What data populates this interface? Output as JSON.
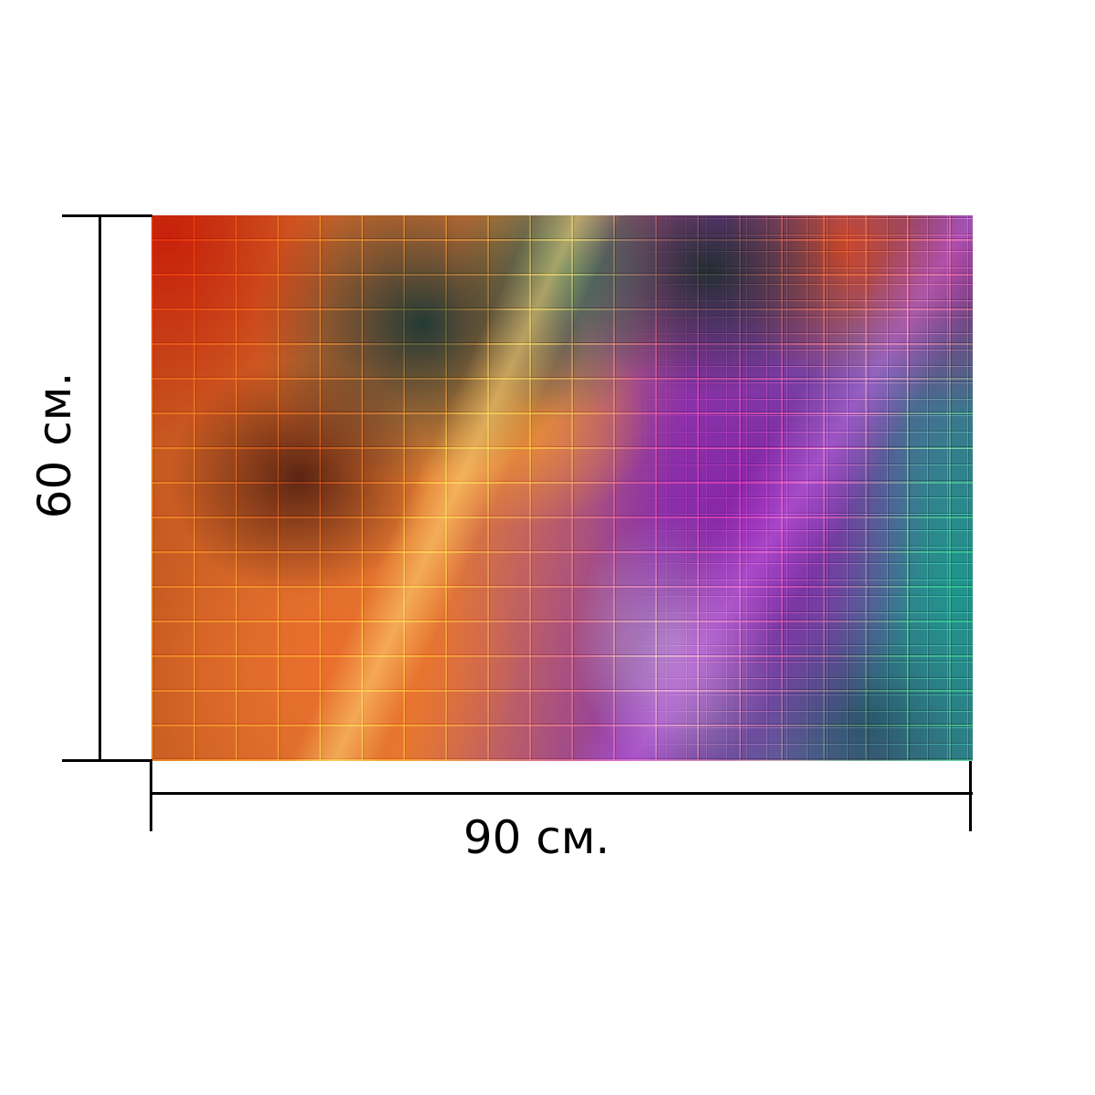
{
  "image": {
    "description_icon": "abstract-brick-wall-artwork",
    "colors": {
      "orange": "#e47b32",
      "teal": "#2f7e86",
      "purple": "#8a3aa8",
      "red": "#c2541e"
    }
  },
  "dimensions": {
    "width_label": "90 см.",
    "height_label": "60 см."
  }
}
